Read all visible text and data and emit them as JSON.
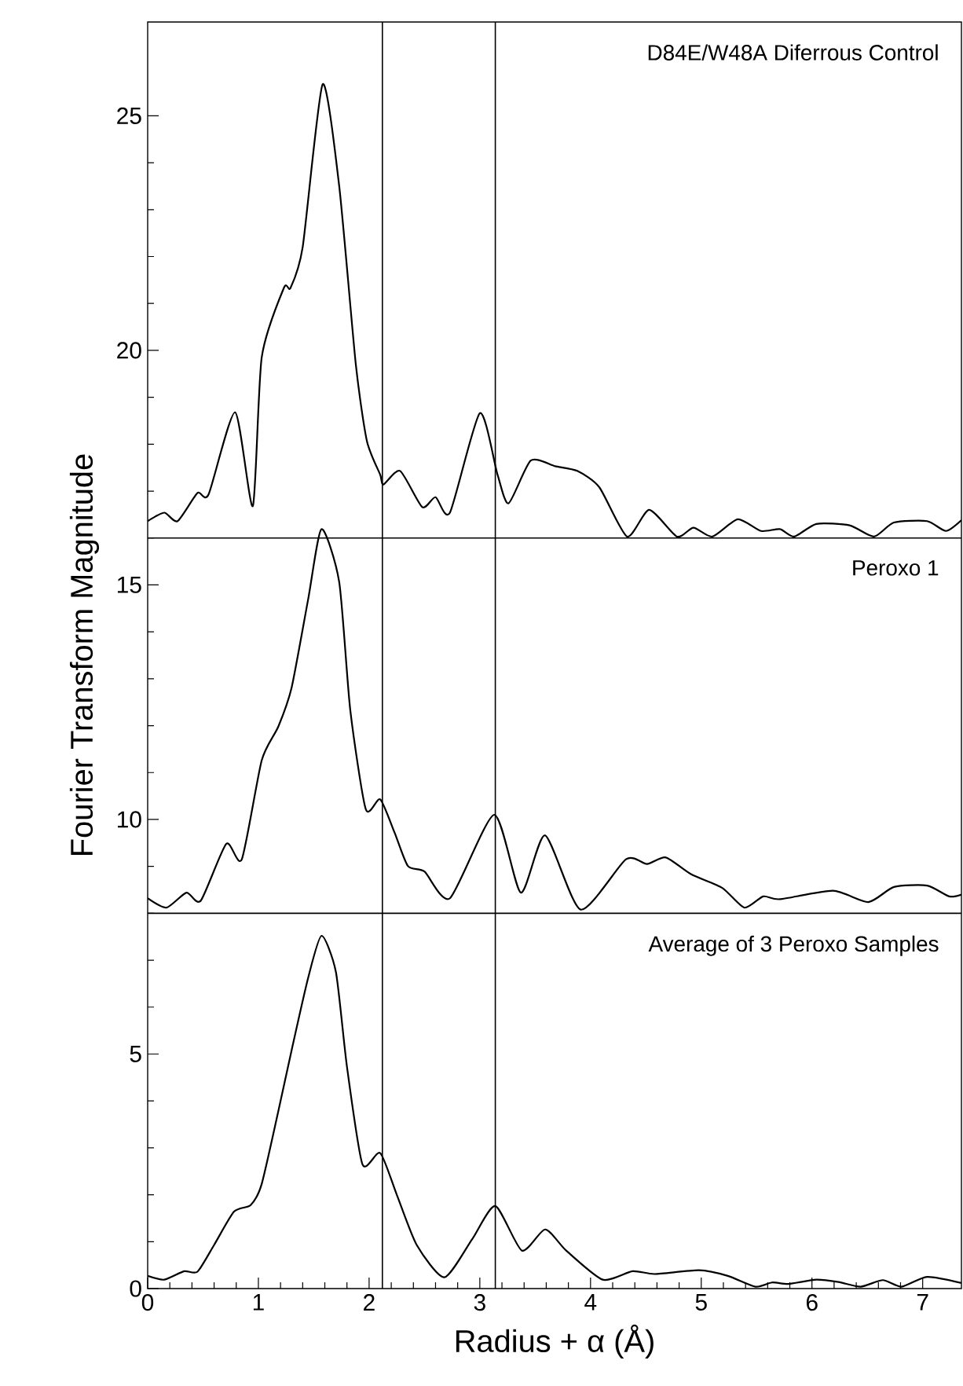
{
  "chart_data": {
    "type": "line",
    "xlabel": "Radius + α (Å)",
    "ylabel": "Fourier Transform Magnitude",
    "xlim": [
      0,
      7.35
    ],
    "ylim": [
      0,
      27
    ],
    "xticks": [
      0,
      1,
      2,
      3,
      4,
      5,
      6,
      7
    ],
    "yticks": [
      0,
      5,
      10,
      15,
      20,
      25
    ],
    "series": [
      {
        "color": "#000000",
        "x": [
          0,
          0.15,
          0.27,
          0.45,
          0.55,
          0.79,
          0.95,
          1.03,
          1.23,
          1.29,
          1.4,
          1.58,
          1.73,
          1.88,
          1.98,
          2.1,
          2.13,
          2.28,
          2.48,
          2.6,
          2.73,
          3.0,
          3.16,
          3.26,
          3.46,
          3.68,
          3.88,
          4.08,
          4.33,
          4.53,
          4.78,
          4.93,
          5.1,
          5.33,
          5.54,
          5.71,
          5.84,
          6.04,
          6.34,
          6.56,
          6.74,
          7.04,
          7.21,
          7.35
        ],
        "values": [
          16.36,
          16.54,
          16.36,
          16.96,
          16.93,
          18.68,
          16.68,
          19.85,
          21.33,
          21.33,
          22.2,
          25.67,
          23.5,
          19.7,
          18.07,
          17.35,
          17.14,
          17.43,
          16.66,
          16.87,
          16.54,
          18.66,
          17.35,
          16.74,
          17.65,
          17.53,
          17.43,
          17.08,
          16.03,
          16.6,
          16.03,
          16.22,
          16.03,
          16.4,
          16.15,
          16.19,
          16.03,
          16.3,
          16.27,
          16.03,
          16.33,
          16.36,
          16.15,
          16.38
        ]
      },
      {
        "color": "#000000",
        "x": [
          0,
          0.17,
          0.35,
          0.48,
          0.71,
          0.85,
          1.03,
          1.18,
          1.3,
          1.45,
          1.57,
          1.73,
          1.83,
          1.97,
          2.1,
          2.23,
          2.35,
          2.5,
          2.73,
          3.13,
          3.37,
          3.59,
          3.91,
          4.32,
          4.51,
          4.68,
          4.91,
          5.19,
          5.39,
          5.56,
          5.71,
          6.19,
          6.51,
          6.74,
          7.04,
          7.24,
          7.35
        ],
        "values": [
          8.32,
          8.12,
          8.44,
          8.27,
          9.48,
          9.15,
          11.26,
          11.98,
          12.81,
          14.7,
          16.19,
          15.06,
          12.33,
          10.22,
          10.43,
          9.72,
          9.01,
          8.89,
          8.32,
          10.1,
          8.44,
          9.66,
          8.08,
          9.15,
          9.05,
          9.19,
          8.83,
          8.54,
          8.12,
          8.36,
          8.3,
          8.48,
          8.24,
          8.56,
          8.59,
          8.36,
          8.4
        ]
      },
      {
        "color": "#000000",
        "x": [
          0,
          0.15,
          0.33,
          0.45,
          0.6,
          0.78,
          0.93,
          1.03,
          1.18,
          1.3,
          1.45,
          1.57,
          1.7,
          1.8,
          1.94,
          2.1,
          2.25,
          2.43,
          2.68,
          2.93,
          3.14,
          3.38,
          3.59,
          3.78,
          4.11,
          4.38,
          4.58,
          4.98,
          5.24,
          5.49,
          5.64,
          5.79,
          6.04,
          6.24,
          6.44,
          6.64,
          6.81,
          7.04,
          7.35
        ],
        "values": [
          0.27,
          0.19,
          0.37,
          0.36,
          0.93,
          1.64,
          1.78,
          2.23,
          3.78,
          5.08,
          6.63,
          7.52,
          6.75,
          4.73,
          2.65,
          2.89,
          2.0,
          0.93,
          0.24,
          1.05,
          1.76,
          0.81,
          1.26,
          0.81,
          0.19,
          0.37,
          0.31,
          0.39,
          0.27,
          0.04,
          0.13,
          0.1,
          0.19,
          0.14,
          0.04,
          0.18,
          0.04,
          0.25,
          0.12
        ]
      }
    ],
    "annotations": [
      "D84E/W48A Diferrous Control",
      "Peroxo 1",
      "Average of 3 Peroxo Samples"
    ],
    "ref_lines": [
      {
        "axis": "x",
        "value": 2.12,
        "color": "#000000"
      },
      {
        "axis": "x",
        "value": 3.14,
        "color": "#000000"
      },
      {
        "axis": "y",
        "value": 16,
        "color": "#000000"
      },
      {
        "axis": "y",
        "value": 8,
        "color": "#000000"
      }
    ]
  }
}
